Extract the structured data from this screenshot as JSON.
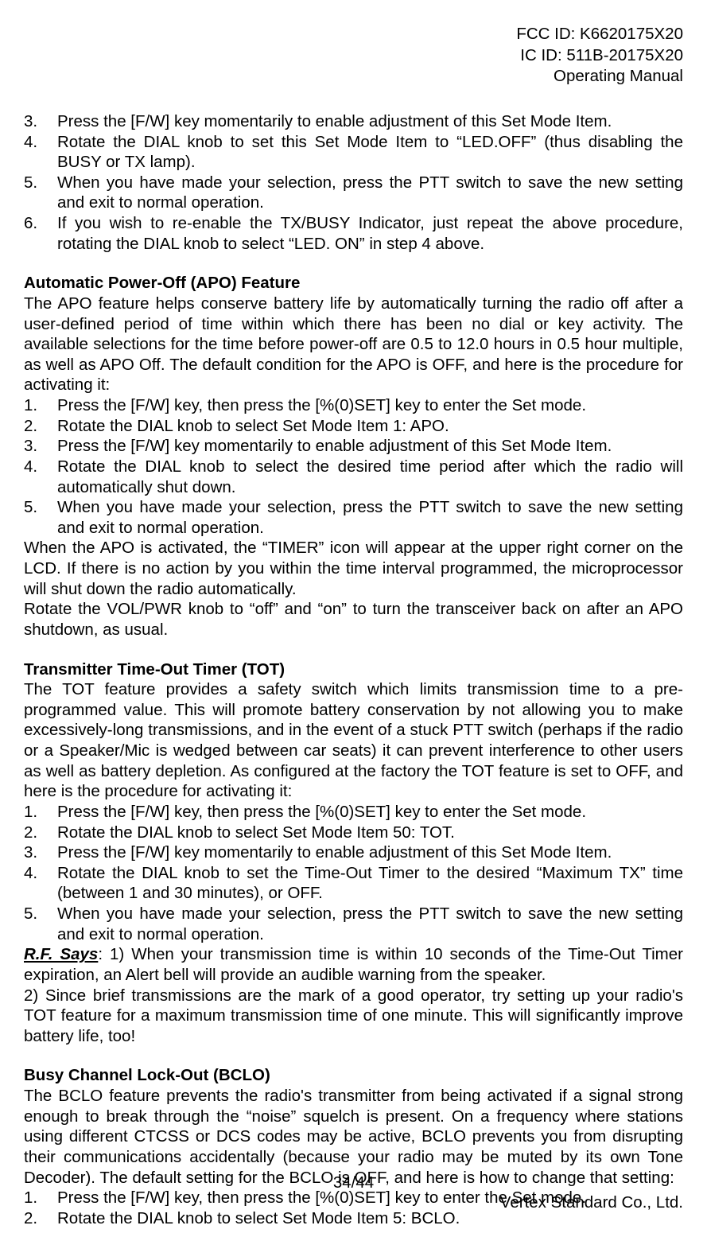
{
  "header": {
    "fcc": "FCC ID: K6620175X20",
    "ic": "IC ID: 511B-20175X20",
    "doc": "Operating Manual"
  },
  "list1": [
    {
      "num": "3.",
      "text": "Press the [F/W] key momentarily to enable adjustment of this Set Mode Item."
    },
    {
      "num": "4.",
      "text": "Rotate the DIAL knob to set this Set Mode Item to “LED.OFF” (thus disabling the BUSY or TX lamp)."
    },
    {
      "num": "5.",
      "text": "When you have made your selection, press the PTT switch to save the new setting and exit to normal operation."
    },
    {
      "num": "6.",
      "text": "If you wish to re-enable the TX/BUSY Indicator, just repeat the above procedure, rotating the DIAL knob to select “LED. ON” in step 4 above."
    }
  ],
  "apo": {
    "heading": "Automatic Power-Off (APO) Feature",
    "para1": "The APO feature helps conserve battery life by automatically turning the radio off after a user-defined period of time within which there has been no dial or key activity. The available selections for the time before power-off are 0.5 to 12.0 hours in 0.5 hour multiple, as well as APO Off. The default condition for the APO is OFF, and here is the procedure for activating it:",
    "list": [
      {
        "num": "1.",
        "text": "Press the [F/W] key, then press the [%(0)SET] key to enter the Set mode."
      },
      {
        "num": "2.",
        "text": "Rotate the DIAL knob to select Set Mode Item 1: APO."
      },
      {
        "num": "3.",
        "text": "Press the [F/W] key momentarily to enable adjustment of this Set Mode Item."
      },
      {
        "num": "4.",
        "text": "Rotate the DIAL knob to select the desired time period after which the radio will automatically shut down."
      },
      {
        "num": "5.",
        "text": "When you have made your selection, press the PTT switch to save the new setting and exit to normal operation."
      }
    ],
    "para2": "When the APO is activated, the “TIMER” icon will appear at the upper right corner on the LCD. If there is no action by you within the time interval programmed, the microprocessor will shut down the radio automatically.",
    "para3": "Rotate the VOL/PWR knob to “off” and “on” to turn the transceiver back on after an APO shutdown, as usual."
  },
  "tot": {
    "heading": "Transmitter Time-Out Timer (TOT)",
    "para1": "The TOT feature provides a safety switch which limits transmission time to a pre-programmed value. This will promote battery conservation by not allowing you to make excessively-long transmissions, and in the event of a stuck PTT switch (perhaps if the radio or a Speaker/Mic is wedged between car seats) it can prevent interference to other users as well as battery depletion. As configured at the factory the TOT feature is set to OFF, and here is the procedure for activating it:",
    "list": [
      {
        "num": "1.",
        "text": "Press the [F/W] key, then press the [%(0)SET] key to enter the Set mode."
      },
      {
        "num": "2.",
        "text": "Rotate the DIAL knob to select Set Mode Item 50: TOT."
      },
      {
        "num": "3.",
        "text": "Press the [F/W] key momentarily to enable adjustment of this Set Mode Item."
      },
      {
        "num": "4.",
        "text": "Rotate the DIAL knob to set the Time-Out Timer to the desired “Maximum TX” time (between 1 and 30 minutes), or OFF."
      },
      {
        "num": "5.",
        "text": "When you have made your selection, press the PTT switch to save the new setting and exit to normal operation."
      }
    ],
    "rf_label": "R.F. Says",
    "rf1": ": 1) When your transmission time is within 10 seconds of the Time-Out Timer expiration, an Alert bell will provide an audible warning from the speaker.",
    "rf2": "2) Since brief transmissions are the mark of a good operator, try setting up your radio's TOT feature for a maximum transmission time of one minute. This will significantly improve battery life, too!"
  },
  "bclo": {
    "heading": "Busy Channel Lock-Out (BCLO)",
    "para1": "The BCLO feature prevents the radio's transmitter from being activated if a signal strong enough to break through the “noise” squelch is present. On a frequency where stations using different CTCSS or DCS codes may be active, BCLO prevents you from disrupting their communications accidentally (because your radio may be muted by its own Tone Decoder). The default setting for the BCLO is OFF, and here is how to change that setting:",
    "list": [
      {
        "num": "1.",
        "text": "Press the [F/W] key, then press the [%(0)SET] key to enter the Set mode."
      },
      {
        "num": "2.",
        "text": "Rotate the DIAL knob to select Set Mode Item 5: BCLO."
      }
    ]
  },
  "footer": {
    "page": "34/44",
    "company": "Vertex Standard Co., Ltd."
  }
}
